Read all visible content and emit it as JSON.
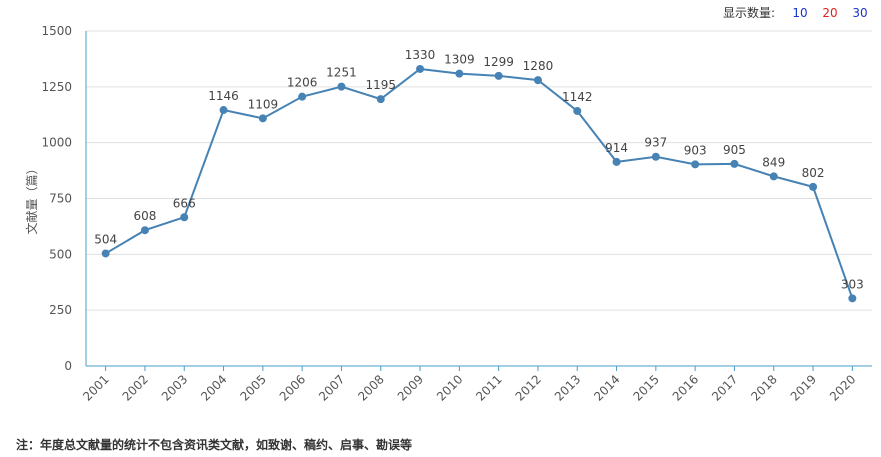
{
  "controls": {
    "label": "显示数量:",
    "options": [
      {
        "label": "10",
        "color": "#1a33cc"
      },
      {
        "label": "20",
        "color": "#e02020"
      },
      {
        "label": "30",
        "color": "#1a33cc"
      }
    ]
  },
  "footnote": "注：年度总文献量的统计不包含资讯类文献，如致谢、稿约、启事、勘误等",
  "chart_data": {
    "type": "line",
    "ylabel": "文献量（篇）",
    "ylim": [
      0,
      1500
    ],
    "yticks": [
      0,
      250,
      500,
      750,
      1000,
      1250,
      1500
    ],
    "categories": [
      "2001",
      "2002",
      "2003",
      "2004",
      "2005",
      "2006",
      "2007",
      "2008",
      "2009",
      "2010",
      "2011",
      "2012",
      "2013",
      "2014",
      "2015",
      "2016",
      "2017",
      "2018",
      "2019",
      "2020"
    ],
    "series": [
      {
        "values": [
          504,
          608,
          666,
          1146,
          1109,
          1206,
          1251,
          1195,
          1330,
          1309,
          1299,
          1280,
          1142,
          914,
          937,
          903,
          905,
          849,
          802,
          303
        ]
      }
    ],
    "grid": true,
    "line_color": "#4682b4",
    "axis_color": "#4a9cc8"
  }
}
